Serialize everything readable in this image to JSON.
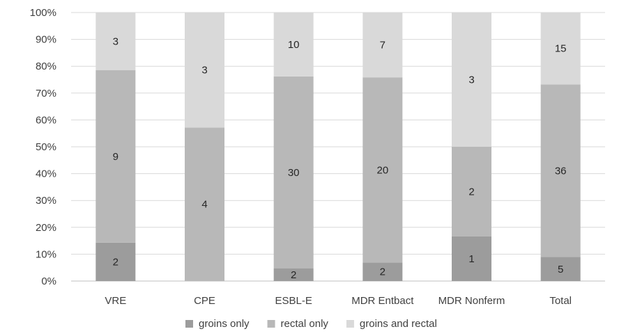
{
  "chart_data": {
    "type": "bar",
    "stacked": "percent",
    "categories": [
      "VRE",
      "CPE",
      "ESBL-E",
      "MDR Entbact",
      "MDR Nonferm",
      "Total"
    ],
    "series": [
      {
        "name": "groins only",
        "color": "#9c9c9c",
        "values": [
          2,
          0,
          2,
          2,
          1,
          5
        ],
        "labels": [
          "2",
          "",
          "2",
          "2",
          "1",
          "5"
        ]
      },
      {
        "name": "rectal only",
        "color": "#b8b8b8",
        "values": [
          9,
          4,
          30,
          20,
          2,
          36
        ],
        "labels": [
          "9",
          "4",
          "30",
          "20",
          "2",
          "36"
        ]
      },
      {
        "name": "groins and rectal",
        "color": "#d9d9d9",
        "values": [
          3,
          3,
          10,
          7,
          3,
          15
        ],
        "labels": [
          "3",
          "3",
          "10",
          "7",
          "3",
          "15"
        ]
      }
    ],
    "y_ticks": [
      "0%",
      "10%",
      "20%",
      "30%",
      "40%",
      "50%",
      "60%",
      "70%",
      "80%",
      "90%",
      "100%"
    ],
    "ylim": [
      0,
      100
    ],
    "grid": true,
    "legend_position": "bottom",
    "title": "",
    "xlabel": "",
    "ylabel": ""
  }
}
